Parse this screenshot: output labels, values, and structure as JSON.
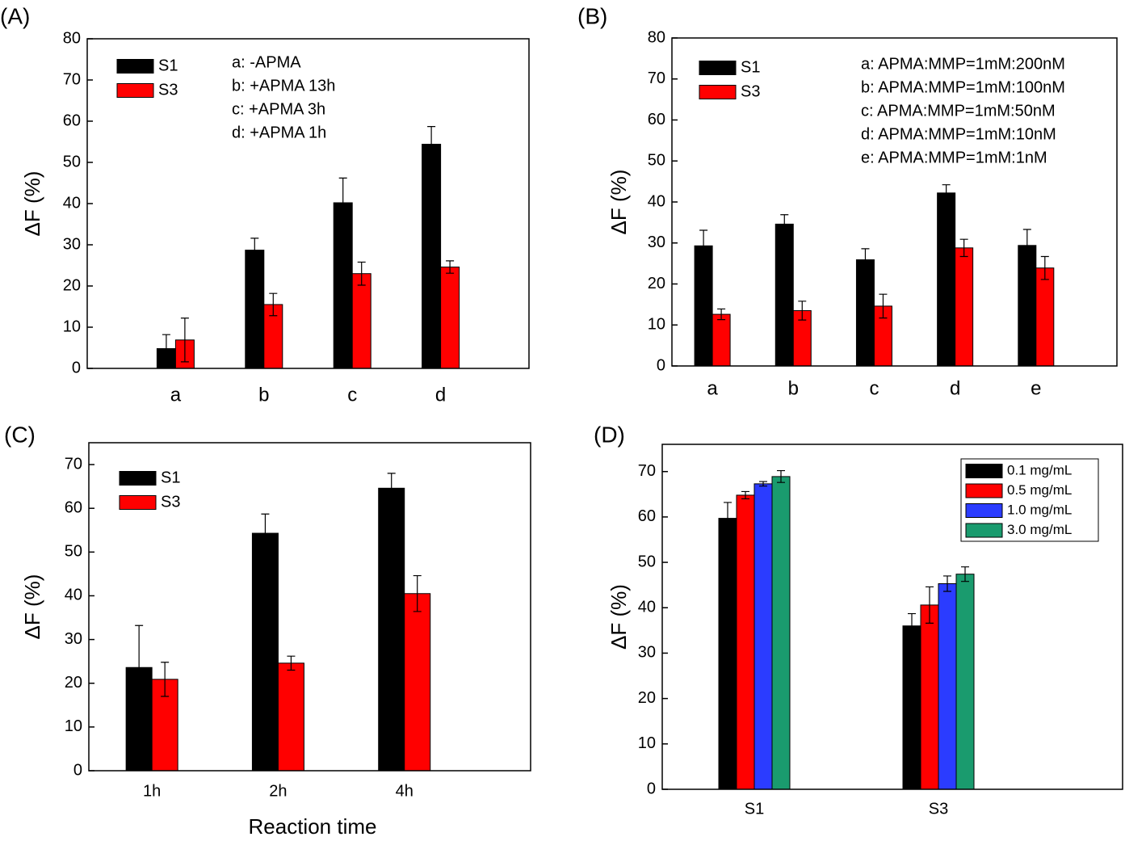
{
  "chart_data": [
    {
      "type": "bar",
      "label": "(A)",
      "ylabel": "ΔF (%)",
      "categories": [
        "a",
        "b",
        "c",
        "d"
      ],
      "series": [
        {
          "name": "S1",
          "color": "#000000",
          "values": [
            4.8,
            28.7,
            40.2,
            54.4
          ],
          "errors": [
            3.4,
            2.9,
            6.0,
            4.3
          ]
        },
        {
          "name": "S3",
          "color": "#ff0000",
          "values": [
            6.9,
            15.5,
            23.0,
            24.6
          ],
          "errors": [
            5.3,
            2.7,
            2.8,
            1.5
          ]
        }
      ],
      "annotations": [
        "a: -APMA",
        "b: +APMA 13h",
        "c: +APMA  3h",
        "d: +APMA 1h"
      ],
      "ylim": [
        0,
        80
      ],
      "yticks": [
        0,
        10,
        20,
        30,
        40,
        50,
        60,
        70,
        80
      ],
      "legend": "upper left"
    },
    {
      "type": "bar",
      "label": "(B)",
      "ylabel": "ΔF (%)",
      "categories": [
        "a",
        "b",
        "c",
        "d",
        "e"
      ],
      "series": [
        {
          "name": "S1",
          "color": "#000000",
          "values": [
            29.3,
            34.6,
            25.9,
            42.2,
            29.4
          ],
          "errors": [
            3.8,
            2.3,
            2.7,
            2.0,
            3.9
          ]
        },
        {
          "name": "S3",
          "color": "#ff0000",
          "values": [
            12.6,
            13.5,
            14.6,
            28.8,
            23.9
          ],
          "errors": [
            1.3,
            2.3,
            2.9,
            2.1,
            2.8
          ]
        }
      ],
      "annotations": [
        "a: APMA:MMP=1mM:200nM",
        "b: APMA:MMP=1mM:100nM",
        "c: APMA:MMP=1mM:50nM",
        "d: APMA:MMP=1mM:10nM",
        "e: APMA:MMP=1mM:1nM"
      ],
      "ylim": [
        0,
        80
      ],
      "yticks": [
        0,
        10,
        20,
        30,
        40,
        50,
        60,
        70,
        80
      ],
      "legend": "upper left"
    },
    {
      "type": "bar",
      "label": "(C)",
      "ylabel": "ΔF (%)",
      "xlabel": "Reaction time",
      "categories": [
        "1h",
        "2h",
        "4h"
      ],
      "series": [
        {
          "name": "S1",
          "color": "#000000",
          "values": [
            23.6,
            54.3,
            64.6
          ],
          "errors": [
            9.6,
            4.4,
            3.4
          ]
        },
        {
          "name": "S3",
          "color": "#ff0000",
          "values": [
            20.9,
            24.6,
            40.5
          ],
          "errors": [
            3.9,
            1.6,
            4.1
          ]
        }
      ],
      "ylim": [
        0,
        75
      ],
      "yticks": [
        0,
        10,
        20,
        30,
        40,
        50,
        60,
        70
      ],
      "legend": "upper left"
    },
    {
      "type": "bar",
      "label": "(D)",
      "ylabel": "ΔF (%)",
      "categories": [
        "S1",
        "S3"
      ],
      "series": [
        {
          "name": "0.1 mg/mL",
          "color": "#000000",
          "values": [
            59.7,
            36.0
          ],
          "errors": [
            3.5,
            2.7
          ]
        },
        {
          "name": "0.5 mg/mL",
          "color": "#ff0000",
          "values": [
            64.8,
            40.6
          ],
          "errors": [
            0.8,
            4.0
          ]
        },
        {
          "name": "1.0 mg/mL",
          "color": "#2b3cff",
          "values": [
            67.3,
            45.3
          ],
          "errors": [
            0.5,
            1.7
          ]
        },
        {
          "name": "3.0 mg/mL",
          "color": "#1a9b6e",
          "values": [
            68.9,
            47.4
          ],
          "errors": [
            1.3,
            1.6
          ]
        }
      ],
      "ylim": [
        0,
        76
      ],
      "yticks": [
        0,
        10,
        20,
        30,
        40,
        50,
        60,
        70
      ],
      "legend": "upper right"
    }
  ]
}
